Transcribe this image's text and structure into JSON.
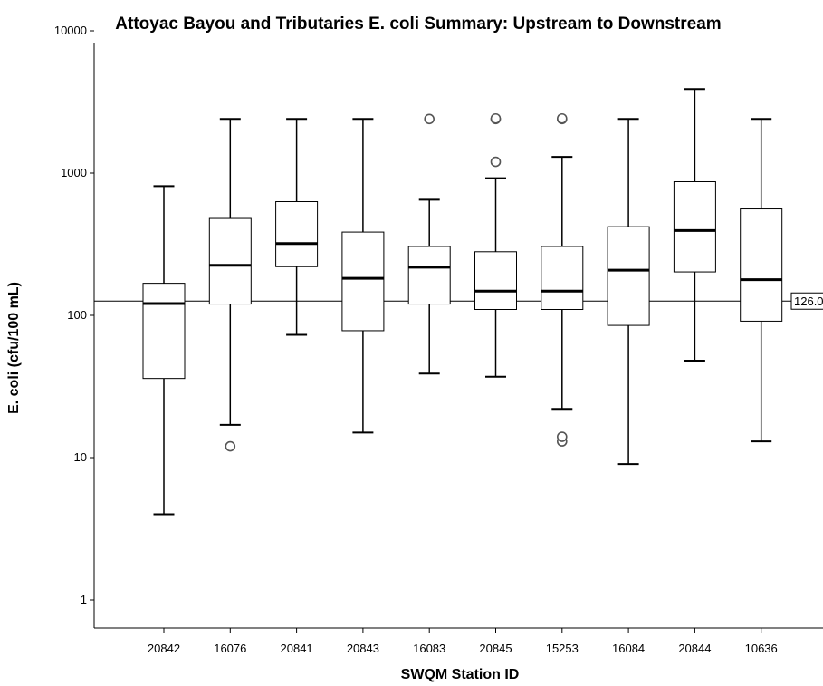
{
  "chart_data": {
    "type": "boxplot",
    "title": "Attoyac Bayou and Tributaries E. coli Summary: Upstream to Downstream",
    "xlabel": "SWQM Station ID",
    "ylabel": "E. coli (cfu/100 mL)",
    "yscale": "log",
    "ylim": [
      0.5,
      15000
    ],
    "yticks": [
      1,
      10,
      100,
      1000,
      10000
    ],
    "ytick_labels": [
      "1",
      "10",
      "100",
      "1000",
      "10000"
    ],
    "grid": false,
    "reference_line": {
      "value": 126,
      "label": "126.0"
    },
    "categories": [
      "20842",
      "16076",
      "20841",
      "20843",
      "16083",
      "20845",
      "15253",
      "16084",
      "20844",
      "10636"
    ],
    "boxes": [
      {
        "station": "20842",
        "whisker_low": 4,
        "q1": 36,
        "median": 121,
        "q3": 168,
        "whisker_high": 810,
        "outliers": []
      },
      {
        "station": "16076",
        "whisker_low": 17,
        "q1": 120,
        "median": 225,
        "q3": 480,
        "whisker_high": 2400,
        "outliers": [
          12
        ]
      },
      {
        "station": "20841",
        "whisker_low": 73,
        "q1": 220,
        "median": 320,
        "q3": 630,
        "whisker_high": 2400,
        "outliers": []
      },
      {
        "station": "20843",
        "whisker_low": 15,
        "q1": 78,
        "median": 182,
        "q3": 385,
        "whisker_high": 2400,
        "outliers": []
      },
      {
        "station": "16083",
        "whisker_low": 39,
        "q1": 120,
        "median": 218,
        "q3": 305,
        "whisker_high": 650,
        "outliers": [
          2400
        ]
      },
      {
        "station": "20845",
        "whisker_low": 37,
        "q1": 110,
        "median": 148,
        "q3": 280,
        "whisker_high": 920,
        "outliers": [
          1200,
          2400,
          2420
        ]
      },
      {
        "station": "15253",
        "whisker_low": 22,
        "q1": 110,
        "median": 148,
        "q3": 305,
        "whisker_high": 1300,
        "outliers": [
          13,
          14,
          2400,
          2420
        ]
      },
      {
        "station": "16084",
        "whisker_low": 9,
        "q1": 85,
        "median": 208,
        "q3": 420,
        "whisker_high": 2400,
        "outliers": []
      },
      {
        "station": "20844",
        "whisker_low": 48,
        "q1": 202,
        "median": 395,
        "q3": 870,
        "whisker_high": 3900,
        "outliers": []
      },
      {
        "station": "10636",
        "whisker_low": 13,
        "q1": 91,
        "median": 178,
        "q3": 560,
        "whisker_high": 2400,
        "outliers": []
      }
    ]
  }
}
